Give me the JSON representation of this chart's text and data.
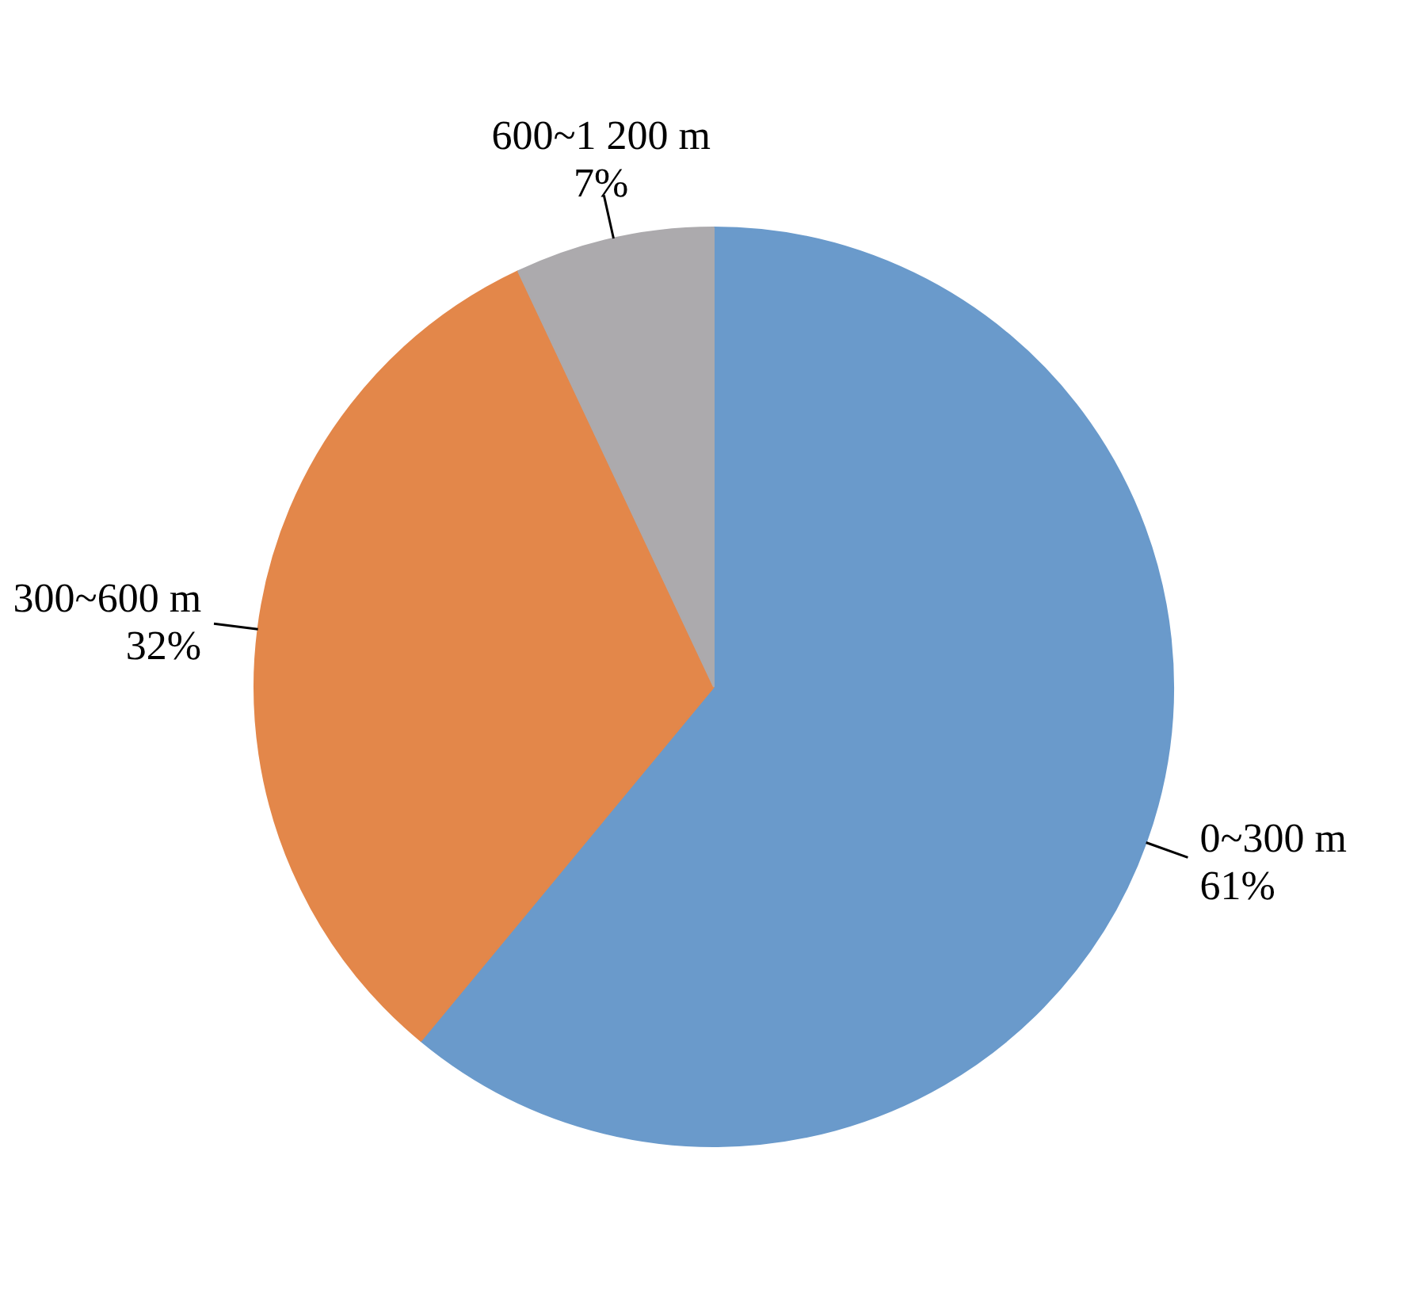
{
  "chart_data": {
    "type": "pie",
    "categories": [
      "0~300 m",
      "300~600 m",
      "600~1 200 m"
    ],
    "values": [
      61,
      32,
      7
    ],
    "value_labels": [
      "61%",
      "32%",
      "7%"
    ],
    "colors": [
      "#6a9acb",
      "#e3874a",
      "#acaaad"
    ]
  }
}
